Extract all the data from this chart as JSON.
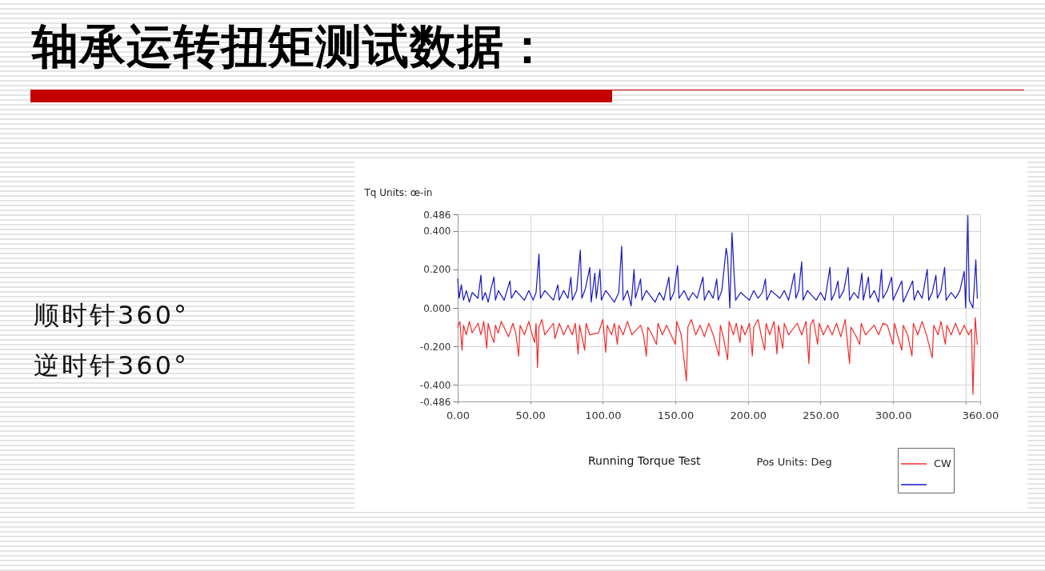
{
  "chart_data": {
    "type": "line",
    "title": "轴承运转扭矩测试数据：",
    "xlabel": "Pos Units: Deg",
    "ylabel": "Tq Units: œ-in",
    "annotations": [
      "Running Torque Test",
      "顺时针360°",
      "逆时针360°"
    ],
    "xlim": [
      0,
      360
    ],
    "ylim": [
      -0.486,
      0.486
    ],
    "xticks": [
      {
        "value": 0,
        "label": "0.00"
      },
      {
        "value": 50,
        "label": "50.00"
      },
      {
        "value": 100,
        "label": "100.00"
      },
      {
        "value": 150,
        "label": "150.00"
      },
      {
        "value": 200,
        "label": "200.00"
      },
      {
        "value": 250,
        "label": "250.00"
      },
      {
        "value": 300,
        "label": "300.00"
      },
      {
        "value": 350,
        "label": null
      },
      {
        "value": 360,
        "label": "360.00"
      }
    ],
    "yticks": [
      -0.486,
      {
        "value": -0.4,
        "label": "-0.400"
      },
      {
        "value": -0.2,
        "label": "-0.200"
      },
      {
        "value": 0,
        "label": "0.000"
      },
      {
        "value": 0.2,
        "label": "0.200"
      },
      {
        "value": 0.4,
        "label": "0.400"
      },
      0.486
    ],
    "grid": true,
    "legend": "bottom right",
    "series": [
      {
        "name": "CW",
        "color": "#f52a2a",
        "x": [
          0,
          1.5,
          3,
          4,
          6,
          8,
          10,
          14,
          16,
          18,
          20,
          21,
          23,
          25,
          26,
          28,
          30,
          35,
          38,
          40,
          42,
          43,
          46,
          49,
          51,
          53,
          54,
          55,
          56,
          58,
          60,
          66,
          67,
          70,
          73,
          76,
          79,
          81,
          83,
          84,
          87.5,
          88.5,
          91,
          97,
          100,
          102,
          103,
          106,
          108,
          110,
          111,
          114,
          117,
          120,
          126,
          128,
          130,
          131,
          134,
          137,
          138,
          141,
          144,
          147,
          150,
          151,
          154,
          157.6,
          158.6,
          161,
          164,
          167,
          170,
          173,
          176,
          180,
          181,
          183,
          186,
          187,
          190,
          192,
          194.5,
          195.5,
          198,
          201,
          203,
          204,
          207,
          209,
          211.5,
          212.5,
          215,
          218,
          220,
          221,
          224,
          225,
          228,
          234,
          237,
          240,
          242,
          243,
          245,
          248,
          249,
          252,
          255,
          258,
          261,
          264,
          267,
          270,
          271,
          274,
          277,
          278,
          281,
          287,
          290,
          293,
          296,
          300,
          301,
          303,
          306,
          307,
          310,
          313,
          314,
          317,
          320,
          323,
          327,
          328,
          331,
          333,
          336,
          337,
          340,
          343,
          346,
          349,
          352,
          354,
          355,
          356.6,
          358
        ],
        "values": [
          -0.1,
          -0.07,
          -0.22,
          -0.09,
          -0.14,
          -0.07,
          -0.13,
          -0.08,
          -0.14,
          -0.07,
          -0.21,
          -0.08,
          -0.14,
          -0.18,
          -0.09,
          -0.13,
          -0.07,
          -0.15,
          -0.08,
          -0.13,
          -0.25,
          -0.09,
          -0.14,
          -0.07,
          -0.13,
          -0.18,
          -0.08,
          -0.31,
          -0.1,
          -0.06,
          -0.14,
          -0.08,
          -0.16,
          -0.08,
          -0.14,
          -0.09,
          -0.14,
          -0.08,
          -0.24,
          -0.09,
          -0.22,
          -0.08,
          -0.14,
          -0.13,
          -0.06,
          -0.23,
          -0.09,
          -0.14,
          -0.08,
          -0.19,
          -0.09,
          -0.14,
          -0.07,
          -0.14,
          -0.09,
          -0.14,
          -0.25,
          -0.1,
          -0.14,
          -0.19,
          -0.08,
          -0.14,
          -0.09,
          -0.14,
          -0.19,
          -0.07,
          -0.14,
          -0.38,
          -0.1,
          -0.06,
          -0.14,
          -0.09,
          -0.15,
          -0.08,
          -0.14,
          -0.25,
          -0.09,
          -0.15,
          -0.27,
          -0.07,
          -0.14,
          -0.08,
          -0.18,
          -0.09,
          -0.14,
          -0.08,
          -0.25,
          -0.1,
          -0.06,
          -0.14,
          -0.22,
          -0.08,
          -0.14,
          -0.07,
          -0.24,
          -0.09,
          -0.21,
          -0.08,
          -0.14,
          -0.08,
          -0.14,
          -0.07,
          -0.29,
          -0.09,
          -0.06,
          -0.19,
          -0.08,
          -0.14,
          -0.09,
          -0.14,
          -0.08,
          -0.15,
          -0.06,
          -0.29,
          -0.1,
          -0.14,
          -0.19,
          -0.08,
          -0.14,
          -0.09,
          -0.14,
          -0.08,
          -0.09,
          -0.19,
          -0.08,
          -0.14,
          -0.22,
          -0.09,
          -0.14,
          -0.25,
          -0.08,
          -0.14,
          -0.07,
          -0.14,
          -0.26,
          -0.09,
          -0.14,
          -0.07,
          -0.19,
          -0.09,
          -0.14,
          -0.08,
          -0.14,
          -0.09,
          -0.14,
          -0.11,
          -0.45,
          -0.05,
          -0.19
        ]
      },
      {
        "color": "#1616c4",
        "x": [
          0,
          1,
          2.5,
          4,
          6,
          8,
          10,
          14,
          16,
          17,
          19,
          21,
          23,
          25,
          26,
          28,
          32,
          34,
          36,
          37,
          40,
          46,
          49,
          52,
          54,
          56,
          57,
          60,
          66,
          69,
          70,
          73,
          76,
          78,
          79,
          82,
          84.5,
          85.5,
          88,
          91,
          92,
          94.5,
          95.5,
          98,
          99,
          102,
          108,
          111,
          113,
          114,
          117,
          119.5,
          121.5,
          122.5,
          126,
          127,
          130,
          136,
          139,
          142,
          145.5,
          146.5,
          149,
          151.5,
          152.5,
          156,
          159,
          162,
          165,
          169,
          170,
          173,
          176,
          178.5,
          179.5,
          182,
          185,
          186,
          187.5,
          189,
          190.5,
          191.5,
          195,
          201,
          204,
          207,
          210,
          212,
          213,
          216,
          222,
          225,
          228,
          232,
          233,
          235,
          237,
          238,
          241,
          247,
          250,
          253,
          256.5,
          257.5,
          260,
          262,
          263,
          266,
          269,
          270,
          273,
          276,
          278.5,
          279.5,
          283,
          284,
          287,
          290,
          292,
          293,
          296,
          299,
          300,
          303,
          306,
          307,
          310,
          313.5,
          314.5,
          317,
          320,
          323.5,
          324.5,
          327,
          329.5,
          330.5,
          333,
          335.5,
          336.5,
          340,
          343,
          346,
          349,
          350,
          351.5,
          352.5,
          355,
          357,
          358
        ],
        "values": [
          0.15,
          0.05,
          0.12,
          0.04,
          0.09,
          0.03,
          0.08,
          0.05,
          0.17,
          0.04,
          0.08,
          0.03,
          0.1,
          0.16,
          0.04,
          0.09,
          0.04,
          0.09,
          0.14,
          0.05,
          0.09,
          0.04,
          0.09,
          0.04,
          0.08,
          0.28,
          0.05,
          0.09,
          0.04,
          0.12,
          0.04,
          0.09,
          0.05,
          0.16,
          0.04,
          0.09,
          0.3,
          0.05,
          0.1,
          0.21,
          0.03,
          0.18,
          0.05,
          0.2,
          0.04,
          0.09,
          0.03,
          0.08,
          0.32,
          0.04,
          0.09,
          0.01,
          0.2,
          0.05,
          0.15,
          0.04,
          0.09,
          0.03,
          0.08,
          0.04,
          0.16,
          0.04,
          0.08,
          0.22,
          0.05,
          0.09,
          0.04,
          0.08,
          0.05,
          0.16,
          0.04,
          0.09,
          0.05,
          0.15,
          0.04,
          0.09,
          0.31,
          0.26,
          0.0,
          0.39,
          0.17,
          0.04,
          0.08,
          0.04,
          0.09,
          0.05,
          0.08,
          0.15,
          0.04,
          0.09,
          0.05,
          0.09,
          0.04,
          0.18,
          0.05,
          0.09,
          0.24,
          0.04,
          0.09,
          0.04,
          0.08,
          0.04,
          0.21,
          0.04,
          0.08,
          0.14,
          0.05,
          0.09,
          0.21,
          0.04,
          0.08,
          0.05,
          0.18,
          0.04,
          0.16,
          0.05,
          0.09,
          0.03,
          0.2,
          0.05,
          0.09,
          0.16,
          0.04,
          0.09,
          0.14,
          0.03,
          0.08,
          0.14,
          0.04,
          0.09,
          0.05,
          0.2,
          0.04,
          0.08,
          0.17,
          0.05,
          0.09,
          0.21,
          0.04,
          0.08,
          0.05,
          0.09,
          0.19,
          0.0,
          0.48,
          0.04,
          0.0,
          0.25,
          0.05
        ]
      }
    ]
  }
}
